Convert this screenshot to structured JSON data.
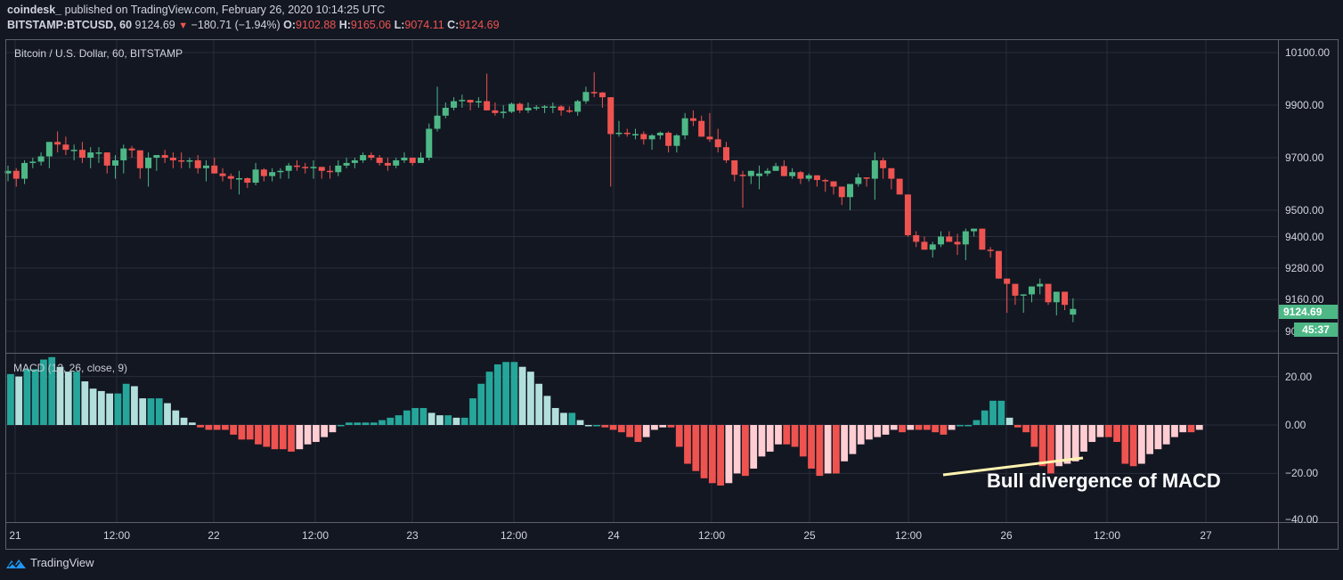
{
  "header": {
    "author": "coindesk_",
    "published_text": "published on TradingView.com, February 26, 2020 10:14:25 UTC",
    "symbol": "BITSTAMP:BTCUSD, 60",
    "last": "9124.69",
    "change_arrow": "▼",
    "change": "−180.71 (−1.94%)",
    "o_label": "O:",
    "o": "9102.88",
    "h_label": "H:",
    "h": "9165.06",
    "l_label": "L:",
    "l": "9074.11",
    "c_label": "C:",
    "c": "9124.69"
  },
  "price_pane": {
    "legend": "Bitcoin / U.S. Dollar, 60, BITSTAMP",
    "price_badge": "9124.69",
    "countdown_badge": "45:37"
  },
  "macd_pane": {
    "legend": "MACD (12, 26, close, 9)"
  },
  "annotation": {
    "text": "Bull divergence of MACD",
    "color": "#fff3b0"
  },
  "branding": {
    "name": "TradingView",
    "icon": "tradingview-logo-icon"
  },
  "colors": {
    "background": "#131722",
    "grid": "#2a2e39",
    "up": "#4db886",
    "down": "#ef5350",
    "macd_pos_strong": "#26a69a",
    "macd_pos_weak": "#b2dfdb",
    "macd_neg_strong": "#ef5350",
    "macd_neg_weak": "#ffcdd2"
  },
  "chart_data": [
    {
      "type": "candlestick",
      "title": "Bitcoin / U.S. Dollar, 60, BITSTAMP",
      "xlabel": "",
      "ylabel": "USD",
      "x_ticks": [
        "21",
        "12:00",
        "22",
        "12:00",
        "23",
        "12:00",
        "24",
        "12:00",
        "25",
        "12:00",
        "26",
        "12:00",
        "27"
      ],
      "y_ticks": [
        10100.0,
        9900.0,
        9700.0,
        9500.0,
        9400.0,
        9280.0,
        9160.0,
        9040.0
      ],
      "ylim": [
        8950,
        10150
      ],
      "grid": true,
      "interval": "60 min",
      "last_price": 9124.69,
      "ohlc_hourly_approx": [
        [
          9640,
          9670,
          9610,
          9650
        ],
        [
          9650,
          9660,
          9590,
          9620
        ],
        [
          9620,
          9690,
          9600,
          9680
        ],
        [
          9680,
          9700,
          9660,
          9685
        ],
        [
          9685,
          9720,
          9670,
          9705
        ],
        [
          9705,
          9760,
          9660,
          9760
        ],
        [
          9760,
          9800,
          9720,
          9750
        ],
        [
          9750,
          9780,
          9710,
          9730
        ],
        [
          9730,
          9750,
          9690,
          9730
        ],
        [
          9730,
          9760,
          9680,
          9700
        ],
        [
          9700,
          9740,
          9660,
          9720
        ],
        [
          9720,
          9740,
          9680,
          9720
        ],
        [
          9720,
          9700,
          9640,
          9670
        ],
        [
          9670,
          9710,
          9620,
          9690
        ],
        [
          9690,
          9750,
          9640,
          9735
        ],
        [
          9735,
          9745,
          9700,
          9728
        ],
        [
          9728,
          9725,
          9620,
          9660
        ],
        [
          9660,
          9720,
          9590,
          9700
        ],
        [
          9700,
          9710,
          9650,
          9710
        ],
        [
          9710,
          9730,
          9680,
          9700
        ],
        [
          9700,
          9720,
          9660,
          9690
        ],
        [
          9690,
          9720,
          9660,
          9688
        ],
        [
          9688,
          9700,
          9660,
          9690
        ],
        [
          9690,
          9710,
          9640,
          9660
        ],
        [
          9660,
          9690,
          9610,
          9670
        ],
        [
          9670,
          9700,
          9640,
          9640
        ],
        [
          9640,
          9660,
          9610,
          9630
        ],
        [
          9630,
          9640,
          9580,
          9620
        ],
        [
          9620,
          9650,
          9560,
          9622
        ],
        [
          9622,
          9625,
          9585,
          9605
        ],
        [
          9605,
          9680,
          9595,
          9655
        ],
        [
          9655,
          9660,
          9610,
          9630
        ],
        [
          9630,
          9660,
          9610,
          9645
        ],
        [
          9645,
          9660,
          9620,
          9650
        ],
        [
          9650,
          9680,
          9620,
          9670
        ],
        [
          9670,
          9690,
          9650,
          9665
        ],
        [
          9665,
          9680,
          9640,
          9660
        ],
        [
          9660,
          9690,
          9620,
          9665
        ],
        [
          9665,
          9660,
          9620,
          9650
        ],
        [
          9650,
          9670,
          9620,
          9645
        ],
        [
          9645,
          9690,
          9630,
          9670
        ],
        [
          9670,
          9700,
          9660,
          9680
        ],
        [
          9680,
          9700,
          9660,
          9690
        ],
        [
          9690,
          9720,
          9680,
          9710
        ],
        [
          9710,
          9720,
          9690,
          9700
        ],
        [
          9700,
          9710,
          9670,
          9680
        ],
        [
          9680,
          9700,
          9650,
          9670
        ],
        [
          9670,
          9700,
          9660,
          9690
        ],
        [
          9690,
          9720,
          9680,
          9700
        ],
        [
          9700,
          9700,
          9670,
          9680
        ],
        [
          9680,
          9720,
          9680,
          9700
        ],
        [
          9700,
          9830,
          9690,
          9810
        ],
        [
          9810,
          9970,
          9800,
          9860
        ],
        [
          9860,
          9910,
          9850,
          9890
        ],
        [
          9890,
          9930,
          9880,
          9915
        ],
        [
          9915,
          9940,
          9890,
          9920
        ],
        [
          9920,
          9910,
          9880,
          9910
        ],
        [
          9910,
          9930,
          9890,
          9915
        ],
        [
          9915,
          10020,
          9880,
          9880
        ],
        [
          9880,
          9910,
          9860,
          9870
        ],
        [
          9870,
          9900,
          9850,
          9875
        ],
        [
          9875,
          9910,
          9870,
          9905
        ],
        [
          9905,
          9910,
          9870,
          9880
        ],
        [
          9880,
          9910,
          9870,
          9890
        ],
        [
          9890,
          9900,
          9880,
          9892
        ],
        [
          9892,
          9900,
          9870,
          9895
        ],
        [
          9895,
          9910,
          9870,
          9895
        ],
        [
          9895,
          9900,
          9860,
          9880
        ],
        [
          9880,
          9895,
          9870,
          9875
        ],
        [
          9875,
          9920,
          9860,
          9915
        ],
        [
          9915,
          9970,
          9905,
          9950
        ],
        [
          9950,
          10025,
          9930,
          9948
        ],
        [
          9948,
          9950,
          9890,
          9930
        ],
        [
          9930,
          9880,
          9590,
          9790
        ],
        [
          9790,
          9840,
          9780,
          9795
        ],
        [
          9795,
          9810,
          9780,
          9790
        ],
        [
          9790,
          9810,
          9770,
          9790
        ],
        [
          9790,
          9800,
          9750,
          9770
        ],
        [
          9770,
          9790,
          9730,
          9785
        ],
        [
          9785,
          9800,
          9770,
          9795
        ],
        [
          9795,
          9800,
          9720,
          9745
        ],
        [
          9745,
          9790,
          9720,
          9785
        ],
        [
          9785,
          9870,
          9770,
          9850
        ],
        [
          9850,
          9880,
          9820,
          9840
        ],
        [
          9840,
          9860,
          9800,
          9780
        ],
        [
          9780,
          9870,
          9760,
          9770
        ],
        [
          9770,
          9810,
          9720,
          9740
        ],
        [
          9740,
          9760,
          9680,
          9690
        ],
        [
          9690,
          9690,
          9610,
          9635
        ],
        [
          9635,
          9650,
          9510,
          9630
        ],
        [
          9630,
          9640,
          9600,
          9650
        ],
        [
          9630,
          9670,
          9580,
          9640
        ],
        [
          9640,
          9660,
          9630,
          9650
        ],
        [
          9650,
          9680,
          9650,
          9668
        ],
        [
          9668,
          9690,
          9640,
          9630
        ],
        [
          9630,
          9660,
          9620,
          9645
        ],
        [
          9645,
          9650,
          9600,
          9620
        ],
        [
          9620,
          9640,
          9610,
          9633
        ],
        [
          9633,
          9630,
          9590,
          9615
        ],
        [
          9615,
          9620,
          9570,
          9610
        ],
        [
          9610,
          9600,
          9560,
          9590
        ],
        [
          9590,
          9590,
          9520,
          9550
        ],
        [
          9550,
          9600,
          9500,
          9600
        ],
        [
          9600,
          9640,
          9590,
          9625
        ],
        [
          9625,
          9625,
          9590,
          9620
        ],
        [
          9620,
          9720,
          9540,
          9690
        ],
        [
          9690,
          9700,
          9620,
          9660
        ],
        [
          9660,
          9610,
          9580,
          9620
        ],
        [
          9620,
          9580,
          9560,
          9560
        ],
        [
          9560,
          9560,
          9400,
          9405
        ],
        [
          9405,
          9420,
          9360,
          9380
        ],
        [
          9380,
          9400,
          9350,
          9350
        ],
        [
          9350,
          9380,
          9320,
          9370
        ],
        [
          9370,
          9420,
          9360,
          9400
        ],
        [
          9400,
          9420,
          9380,
          9380
        ],
        [
          9380,
          9410,
          9330,
          9370
        ],
        [
          9370,
          9430,
          9310,
          9420
        ],
        [
          9420,
          9420,
          9400,
          9430
        ],
        [
          9430,
          9430,
          9350,
          9350
        ],
        [
          9350,
          9360,
          9320,
          9345
        ],
        [
          9345,
          9340,
          9270,
          9240
        ],
        [
          9240,
          9230,
          9110,
          9220
        ],
        [
          9220,
          9210,
          9140,
          9175
        ],
        [
          9175,
          9180,
          9110,
          9180
        ],
        [
          9180,
          9200,
          9150,
          9210
        ],
        [
          9210,
          9240,
          9180,
          9220
        ],
        [
          9220,
          9220,
          9140,
          9150
        ],
        [
          9150,
          9190,
          9100,
          9190
        ],
        [
          9190,
          9170,
          9120,
          9140
        ],
        [
          9102.88,
          9165.06,
          9074.11,
          9124.69
        ]
      ]
    },
    {
      "type": "bar",
      "title": "MACD (12, 26, close, 9)",
      "series": [
        {
          "name": "MACD histogram",
          "values_hourly_approx": [
            21,
            20,
            23,
            23,
            27,
            28,
            24,
            22,
            22,
            18,
            15,
            14,
            13,
            13,
            17,
            16,
            11,
            11,
            11,
            9,
            6,
            3,
            1,
            -1,
            -2,
            -2,
            -2,
            -4,
            -6,
            -6,
            -8,
            -9,
            -10,
            -10,
            -11,
            -10,
            -8,
            -7,
            -5,
            -3,
            0,
            1,
            1,
            1,
            1,
            2,
            3,
            4,
            6,
            7,
            7,
            5,
            4,
            4,
            3,
            3,
            11,
            17,
            22,
            25,
            26,
            26,
            24,
            22,
            17,
            12,
            7,
            5,
            5,
            2,
            0,
            0,
            -1,
            -2,
            -3,
            -5,
            -7,
            -5,
            -2,
            -1,
            -1,
            -9,
            -16,
            -19,
            -22,
            -24,
            -25,
            -24,
            -20,
            -21,
            -18,
            -13,
            -11,
            -8,
            -8,
            -9,
            -13,
            -18,
            -21,
            -20,
            -20,
            -15,
            -12,
            -8,
            -6,
            -5,
            -4,
            -2,
            -3,
            -2,
            -2,
            -2,
            -3,
            -4,
            -2,
            0,
            0,
            2,
            6,
            10,
            10,
            3,
            -1,
            -3,
            -9,
            -17,
            -20,
            -17,
            -16,
            -15,
            -11,
            -7,
            -5,
            -5,
            -7,
            -16,
            -17,
            -16,
            -12,
            -10,
            -8,
            -5,
            -3,
            -3,
            -2
          ]
        }
      ],
      "ylim": [
        -40,
        30
      ],
      "y_ticks": [
        20.0,
        0.0,
        -20.0,
        -40.0
      ],
      "annotation": "Bull divergence of MACD"
    }
  ]
}
